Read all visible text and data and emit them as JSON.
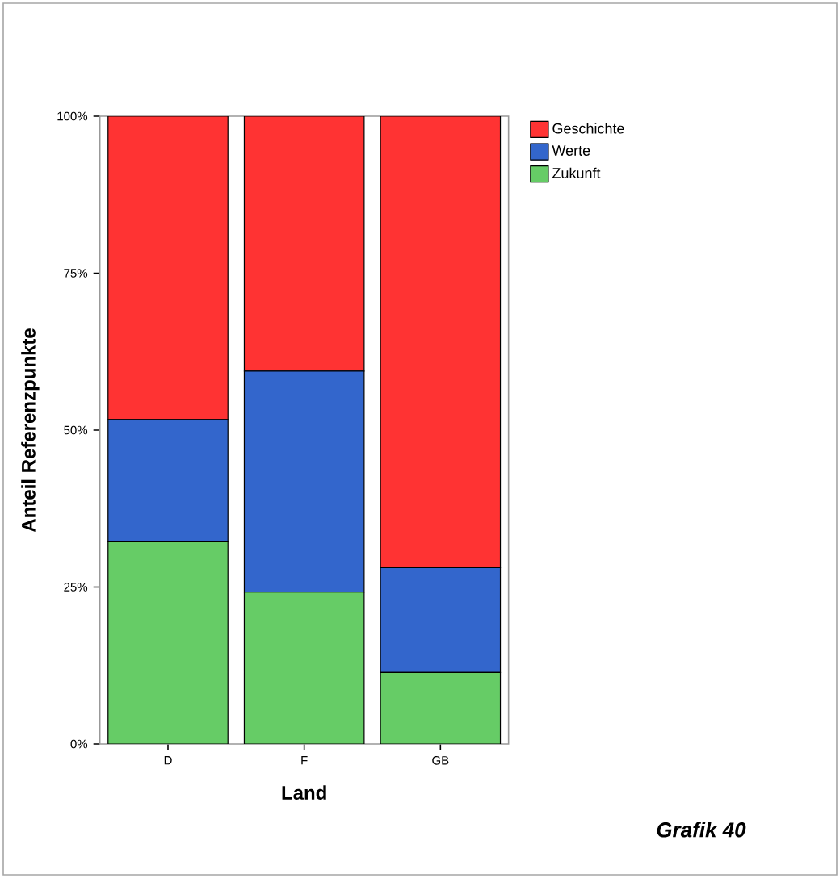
{
  "chart_data": {
    "type": "bar",
    "stacked": true,
    "xlabel": "Land",
    "ylabel": "Anteil Referenzpunkte",
    "categories": [
      "D",
      "F",
      "GB"
    ],
    "series": [
      {
        "name": "Zukunft",
        "color": "#66cc66",
        "values": [
          32.2,
          24.2,
          11.4
        ]
      },
      {
        "name": "Werte",
        "color": "#3366cc",
        "values": [
          19.5,
          35.2,
          16.7
        ]
      },
      {
        "name": "Geschichte",
        "color": "#ff3333",
        "values": [
          48.3,
          40.6,
          71.9
        ]
      }
    ],
    "ylim": [
      0,
      100
    ],
    "yticks": [
      {
        "value": 0,
        "label": "0%"
      },
      {
        "value": 25,
        "label": "25%"
      },
      {
        "value": 50,
        "label": "50%"
      },
      {
        "value": 75,
        "label": "75%"
      },
      {
        "value": 100,
        "label": "100%"
      }
    ],
    "grid": false,
    "legend": "top right",
    "annotations": [
      "Grafik 40"
    ]
  }
}
